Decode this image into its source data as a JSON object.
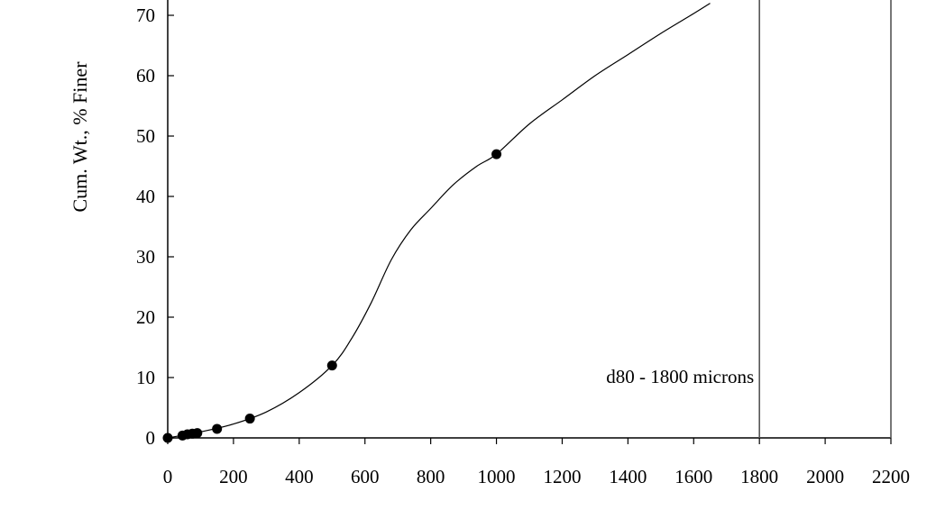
{
  "chart_data": {
    "type": "line",
    "title": "",
    "ylabel": "Cum. Wt., % Finer",
    "xlim": [
      0,
      2200
    ],
    "ylim": [
      0,
      70
    ],
    "x_ticks": [
      0,
      200,
      400,
      600,
      800,
      1000,
      1200,
      1400,
      1600,
      1800,
      2000,
      2200
    ],
    "y_ticks": [
      0,
      10,
      20,
      30,
      40,
      50,
      60,
      70
    ],
    "grid": false,
    "series": [
      {
        "points": [
          {
            "x": 0,
            "y": 0
          },
          {
            "x": 45,
            "y": 0.4
          },
          {
            "x": 60,
            "y": 0.6
          },
          {
            "x": 75,
            "y": 0.7
          },
          {
            "x": 90,
            "y": 0.8
          },
          {
            "x": 150,
            "y": 1.5
          },
          {
            "x": 250,
            "y": 3.2
          },
          {
            "x": 500,
            "y": 12
          },
          {
            "x": 1000,
            "y": 47
          }
        ],
        "curve": [
          [
            0,
            0
          ],
          [
            100,
            1
          ],
          [
            200,
            2.3
          ],
          [
            300,
            4.3
          ],
          [
            400,
            7.5
          ],
          [
            500,
            12
          ],
          [
            560,
            16.5
          ],
          [
            620,
            22.5
          ],
          [
            680,
            29.5
          ],
          [
            740,
            34.5
          ],
          [
            800,
            38
          ],
          [
            870,
            42
          ],
          [
            940,
            45
          ],
          [
            1000,
            47
          ],
          [
            1100,
            52
          ],
          [
            1200,
            56
          ],
          [
            1300,
            60
          ],
          [
            1400,
            63.5
          ],
          [
            1500,
            67
          ],
          [
            1600,
            70.3
          ],
          [
            1650,
            72
          ]
        ]
      }
    ],
    "markers": [
      {
        "x": 1800,
        "label": "d80 - 1800 microns"
      },
      {
        "x": 2200,
        "label": ""
      }
    ]
  }
}
